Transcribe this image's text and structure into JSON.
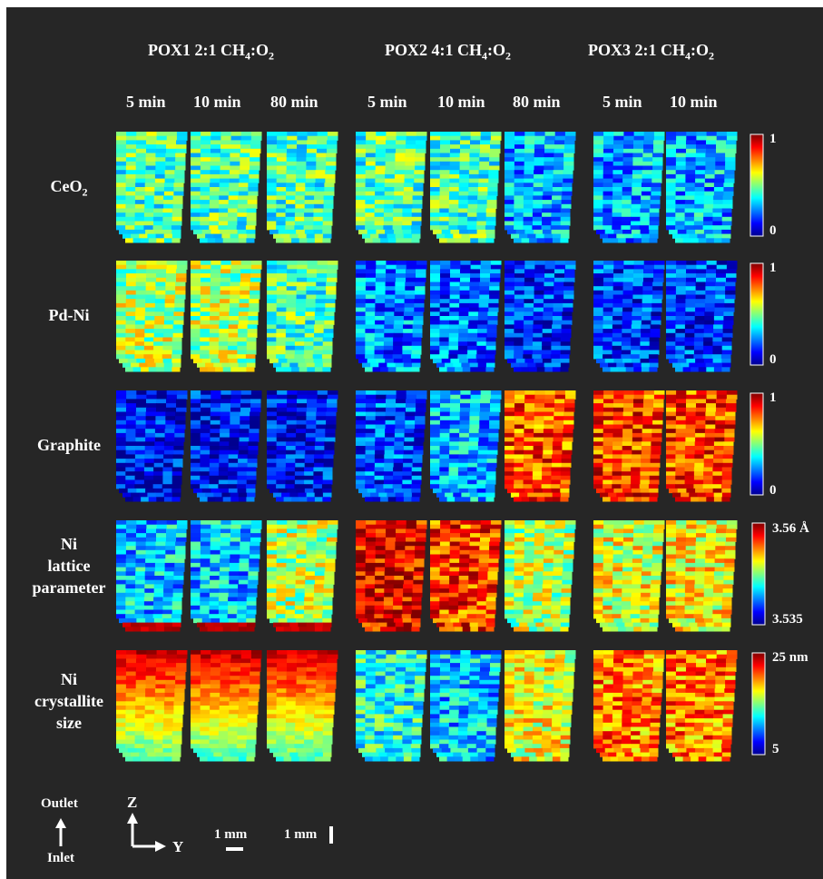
{
  "groups": [
    {
      "label_main": "POX1 2:1 CH",
      "sub1": "4",
      "mid": ":O",
      "sub2": "2"
    },
    {
      "label_main": "POX2 4:1 CH",
      "sub1": "4",
      "mid": ":O",
      "sub2": "2"
    },
    {
      "label_main": "POX3 2:1 CH",
      "sub1": "4",
      "mid": ":O",
      "sub2": "2"
    }
  ],
  "times": [
    "5 min",
    "10 min",
    "80 min",
    "5 min",
    "10 min",
    "80 min",
    "5 min",
    "10 min"
  ],
  "rows": [
    {
      "lines": [
        "CeO",
        ""
      ],
      "sub": "2",
      "cmin": "0",
      "cmax": "1"
    },
    {
      "lines": [
        "Pd-Ni"
      ],
      "sub": "",
      "cmin": "0",
      "cmax": "1"
    },
    {
      "lines": [
        "Graphite"
      ],
      "sub": "",
      "cmin": "0",
      "cmax": "1"
    },
    {
      "lines": [
        "Ni",
        "lattice",
        "parameter"
      ],
      "sub": "",
      "cmin": "3.535",
      "cmax": "3.56 Å"
    },
    {
      "lines": [
        "Ni",
        "crystallite",
        "size"
      ],
      "sub": "",
      "cmin": "5",
      "cmax": "25 nm"
    }
  ],
  "legend": {
    "outlet": "Outlet",
    "inlet": "Inlet",
    "axis_z": "Z",
    "axis_y": "Y",
    "scale1": "1 mm",
    "scale2": "1 mm"
  },
  "map_levels": [
    [
      0.45,
      0.45,
      0.45,
      0.45,
      0.45,
      0.3,
      0.3,
      0.3
    ],
    [
      0.55,
      0.55,
      0.45,
      0.25,
      0.22,
      0.15,
      0.17,
      0.17
    ],
    [
      0.12,
      0.12,
      0.12,
      0.18,
      0.3,
      0.8,
      0.82,
      0.82
    ],
    [
      0.32,
      0.32,
      0.55,
      0.9,
      0.82,
      0.55,
      0.6,
      0.62
    ],
    [
      0.68,
      0.68,
      0.68,
      0.4,
      0.32,
      0.6,
      0.75,
      0.75
    ]
  ],
  "colors": {
    "background": "#262626",
    "text": "#ffffff"
  }
}
